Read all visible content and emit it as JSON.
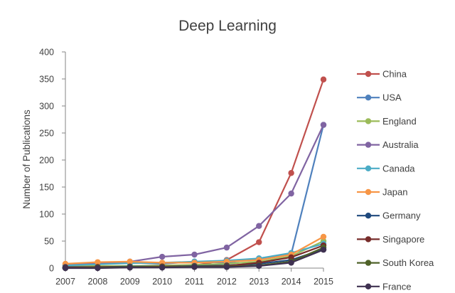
{
  "chart_data": {
    "type": "line",
    "title": "Deep Learning",
    "xlabel": "",
    "ylabel": "Number of Publications",
    "x": [
      "2007",
      "2008",
      "2009",
      "2010",
      "2011",
      "2012",
      "2013",
      "2014",
      "2015"
    ],
    "ylim": [
      0,
      400
    ],
    "yticks": [
      0,
      50,
      100,
      150,
      200,
      250,
      300,
      350,
      400
    ],
    "grid": false,
    "legend": "right",
    "series": [
      {
        "name": "China",
        "color": "#C0504D",
        "values": [
          2,
          3,
          3,
          4,
          5,
          15,
          48,
          176,
          349
        ]
      },
      {
        "name": "USA",
        "color": "#4F81BD",
        "values": [
          5,
          8,
          10,
          8,
          12,
          10,
          18,
          26,
          265
        ]
      },
      {
        "name": "England",
        "color": "#9BBB59",
        "values": [
          3,
          4,
          4,
          5,
          6,
          8,
          12,
          22,
          50
        ]
      },
      {
        "name": "Australia",
        "color": "#8064A2",
        "values": [
          6,
          9,
          12,
          21,
          25,
          38,
          78,
          138,
          265
        ]
      },
      {
        "name": "Canada",
        "color": "#4BACC6",
        "values": [
          5,
          7,
          9,
          10,
          12,
          14,
          18,
          28,
          45
        ]
      },
      {
        "name": "Japan",
        "color": "#F79646",
        "values": [
          8,
          11,
          12,
          10,
          10,
          12,
          15,
          25,
          58
        ]
      },
      {
        "name": "Germany",
        "color": "#1F497D",
        "values": [
          2,
          2,
          3,
          3,
          4,
          5,
          8,
          15,
          35
        ]
      },
      {
        "name": "Singapore",
        "color": "#772C2A",
        "values": [
          1,
          2,
          2,
          3,
          3,
          4,
          10,
          20,
          42
        ]
      },
      {
        "name": "South Korea",
        "color": "#4F6228",
        "values": [
          0,
          1,
          2,
          2,
          3,
          3,
          5,
          12,
          38
        ]
      },
      {
        "name": "France",
        "color": "#3F3151",
        "values": [
          0,
          0,
          1,
          1,
          2,
          2,
          4,
          10,
          34
        ]
      }
    ]
  }
}
